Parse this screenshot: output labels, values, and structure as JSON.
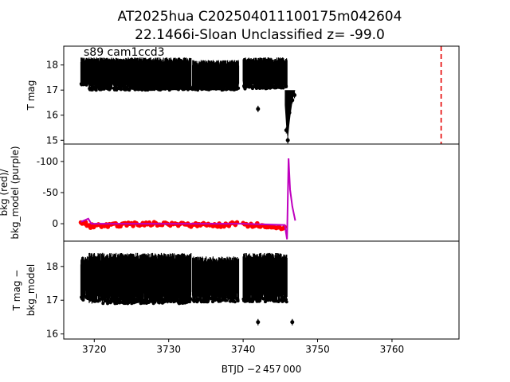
{
  "title_line1": "AT2025hua  C202504011100175m042604",
  "title_line2": "22.1466i-Sloan Unclassified z= -99.0",
  "annotation": "s89 cam1ccd3",
  "xlabel": "BTJD −2 457 000",
  "chart_data": [
    {
      "type": "scatter",
      "ylabel": "T mag",
      "yinverted": true,
      "xlim": [
        3715.9,
        3769.0
      ],
      "ylim": [
        18.75,
        14.85
      ],
      "x_ticks": [
        3720,
        3730,
        3740,
        3750,
        3760
      ],
      "y_ticks": [
        15,
        16,
        17,
        18
      ],
      "clusters": [
        {
          "x_range": [
            3718.2,
            3719.3
          ],
          "y_range": [
            17.2,
            18.3
          ]
        },
        {
          "x_range": [
            3719.3,
            3733.0
          ],
          "y_range": [
            17.0,
            18.3
          ]
        },
        {
          "x_range": [
            3733.2,
            3739.4
          ],
          "y_range": [
            17.0,
            18.2
          ]
        },
        {
          "x_range": [
            3740.0,
            3745.9
          ],
          "y_range": [
            17.05,
            18.3
          ]
        }
      ],
      "outbursts": [
        {
          "x": 3742.0,
          "y": 16.25
        },
        {
          "x": 3745.8,
          "y": 15.4
        },
        {
          "x": 3746.0,
          "y": 15.0
        },
        {
          "x": 3746.2,
          "y": 16.1
        },
        {
          "x": 3746.6,
          "y": 16.6
        },
        {
          "x": 3746.9,
          "y": 16.8
        }
      ],
      "vline": {
        "x": 3766.6,
        "color": "#e50000",
        "style": "dashed"
      }
    },
    {
      "type": "line",
      "ylabel_line1": "bkg (red)/",
      "ylabel_line2": "bkg_model (purple)",
      "xlim": [
        3715.9,
        3769.0
      ],
      "ylim": [
        -128,
        28
      ],
      "y_ticks": [
        0,
        -50,
        -100
      ],
      "series": [
        {
          "role": "bkg",
          "color": "#ff0000",
          "x": [
            3718.2,
            3719.5,
            3725,
            3730,
            3733,
            3737,
            3739.4,
            3740,
            3744,
            3745.8
          ],
          "y": [
            -4,
            4,
            1,
            0,
            2,
            2,
            0,
            1,
            4,
            7
          ]
        },
        {
          "role": "bkg_model",
          "color": "#bf00bf",
          "x": [
            3718.2,
            3719.2,
            3719.6,
            3725,
            3733,
            3739.4,
            3740,
            3745.6,
            3745.9,
            3746.1,
            3746.3,
            3746.6,
            3747.0
          ],
          "y": [
            -3,
            -8,
            0,
            0,
            0,
            0,
            0,
            2,
            25,
            -105,
            -55,
            -28,
            -5
          ]
        }
      ]
    },
    {
      "type": "scatter",
      "ylabel_line1": "T mag −",
      "ylabel_line2": "bkg_model",
      "yinverted": true,
      "xlim": [
        3715.9,
        3769.0
      ],
      "ylim": [
        18.75,
        15.85
      ],
      "y_ticks": [
        16,
        17,
        18
      ],
      "clusters": [
        {
          "x_range": [
            3718.2,
            3719.3
          ],
          "y_range": [
            17.0,
            18.3
          ]
        },
        {
          "x_range": [
            3719.3,
            3733.0
          ],
          "y_range": [
            16.9,
            18.4
          ]
        },
        {
          "x_range": [
            3733.2,
            3739.4
          ],
          "y_range": [
            16.95,
            18.3
          ]
        },
        {
          "x_range": [
            3740.0,
            3745.9
          ],
          "y_range": [
            16.95,
            18.4
          ]
        }
      ],
      "outbursts": [
        {
          "x": 3742.0,
          "y": 16.35
        },
        {
          "x": 3746.6,
          "y": 16.35
        }
      ]
    }
  ]
}
